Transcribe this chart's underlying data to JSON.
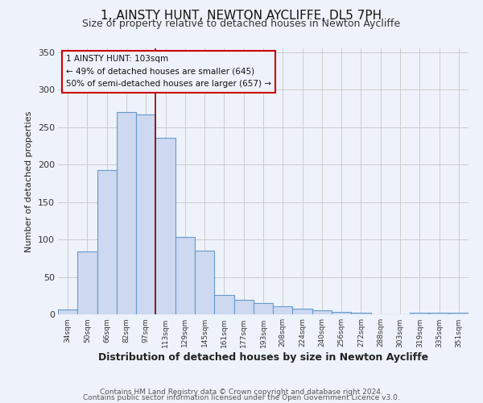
{
  "title": "1, AINSTY HUNT, NEWTON AYCLIFFE, DL5 7PH",
  "subtitle": "Size of property relative to detached houses in Newton Aycliffe",
  "xlabel": "Distribution of detached houses by size in Newton Aycliffe",
  "ylabel": "Number of detached properties",
  "bar_color": "#ccd9f0",
  "bar_edge_color": "#6699cc",
  "background_color": "#eef2fa",
  "grid_color": "#cccccc",
  "categories": [
    "34sqm",
    "50sqm",
    "66sqm",
    "82sqm",
    "97sqm",
    "113sqm",
    "129sqm",
    "145sqm",
    "161sqm",
    "177sqm",
    "193sqm",
    "208sqm",
    "224sqm",
    "240sqm",
    "256sqm",
    "272sqm",
    "288sqm",
    "303sqm",
    "319sqm",
    "335sqm",
    "351sqm"
  ],
  "values": [
    6,
    84,
    193,
    270,
    267,
    236,
    103,
    85,
    26,
    19,
    15,
    11,
    7,
    5,
    3,
    2,
    0,
    0,
    2,
    2,
    2
  ],
  "red_line_bin": 4.5,
  "annotation_title": "1 AINSTY HUNT: 103sqm",
  "annotation_line1": "← 49% of detached houses are smaller (645)",
  "annotation_line2": "50% of semi-detached houses are larger (657) →",
  "ylim": [
    0,
    355
  ],
  "yticks": [
    0,
    50,
    100,
    150,
    200,
    250,
    300,
    350
  ],
  "footer1": "Contains HM Land Registry data © Crown copyright and database right 2024.",
  "footer2": "Contains public sector information licensed under the Open Government Licence v3.0."
}
